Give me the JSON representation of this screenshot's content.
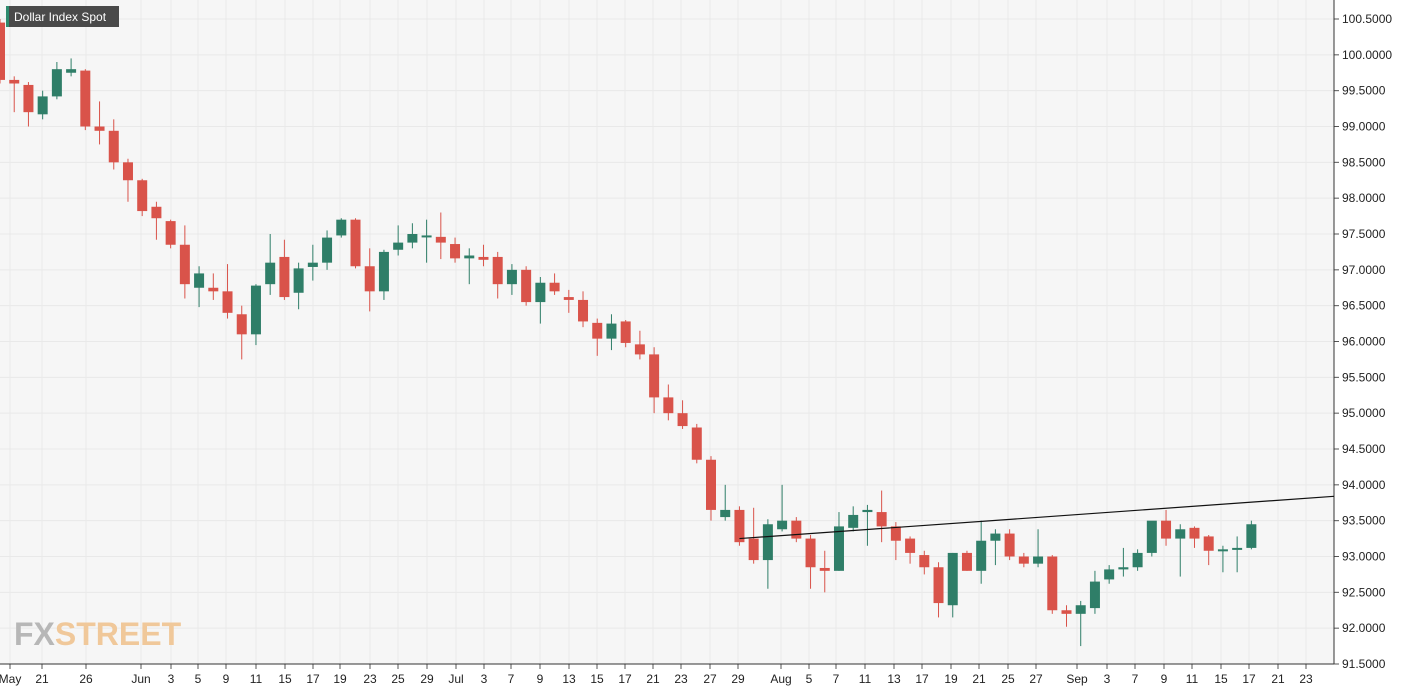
{
  "title": "Dollar Index Spot",
  "logo": {
    "part1": "FX",
    "part2": "STREET"
  },
  "colors": {
    "up": "#2f7e68",
    "down": "#d9534a",
    "grid": "#e9e9e9",
    "background": "#f6f6f6",
    "trendline": "#111111"
  },
  "chart_data": {
    "type": "candlestick",
    "title": "Dollar Index Spot",
    "ylim": [
      91.5,
      100.6
    ],
    "grid": true,
    "y_ticks": [
      "100.5000",
      "100.0000",
      "99.5000",
      "99.0000",
      "98.5000",
      "98.0000",
      "97.5000",
      "97.0000",
      "96.5000",
      "96.0000",
      "95.5000",
      "95.0000",
      "94.5000",
      "94.0000",
      "93.5000",
      "93.0000",
      "92.5000",
      "92.0000",
      "91.5000"
    ],
    "x_ticks": [
      "May",
      "21",
      "26",
      "Jun",
      "3",
      "5",
      "9",
      "11",
      "15",
      "17",
      "19",
      "23",
      "25",
      "29",
      "Jul",
      "3",
      "7",
      "9",
      "13",
      "15",
      "17",
      "21",
      "23",
      "27",
      "29",
      "Aug",
      "5",
      "7",
      "11",
      "13",
      "17",
      "19",
      "21",
      "25",
      "27",
      "Sep",
      "3",
      "7",
      "9",
      "11",
      "15",
      "17",
      "21",
      "23"
    ],
    "candles": [
      {
        "o": 100.45,
        "h": 100.5,
        "l": 99.6,
        "c": 99.65
      },
      {
        "o": 99.65,
        "h": 99.7,
        "l": 99.2,
        "c": 99.6
      },
      {
        "o": 99.58,
        "h": 99.62,
        "l": 99.0,
        "c": 99.2
      },
      {
        "o": 99.17,
        "h": 99.5,
        "l": 99.1,
        "c": 99.42
      },
      {
        "o": 99.42,
        "h": 99.9,
        "l": 99.38,
        "c": 99.8
      },
      {
        "o": 99.75,
        "h": 99.95,
        "l": 99.7,
        "c": 99.8
      },
      {
        "o": 99.78,
        "h": 99.8,
        "l": 98.95,
        "c": 99.0
      },
      {
        "o": 99.0,
        "h": 99.35,
        "l": 98.75,
        "c": 98.94
      },
      {
        "o": 98.94,
        "h": 99.1,
        "l": 98.4,
        "c": 98.5
      },
      {
        "o": 98.5,
        "h": 98.55,
        "l": 97.95,
        "c": 98.25
      },
      {
        "o": 98.25,
        "h": 98.27,
        "l": 97.75,
        "c": 97.82
      },
      {
        "o": 97.88,
        "h": 97.95,
        "l": 97.42,
        "c": 97.72
      },
      {
        "o": 97.68,
        "h": 97.7,
        "l": 97.3,
        "c": 97.35
      },
      {
        "o": 97.35,
        "h": 97.62,
        "l": 96.6,
        "c": 96.8
      },
      {
        "o": 96.75,
        "h": 97.05,
        "l": 96.48,
        "c": 96.95
      },
      {
        "o": 96.75,
        "h": 96.95,
        "l": 96.58,
        "c": 96.7
      },
      {
        "o": 96.7,
        "h": 97.08,
        "l": 96.32,
        "c": 96.4
      },
      {
        "o": 96.38,
        "h": 96.5,
        "l": 95.75,
        "c": 96.1
      },
      {
        "o": 96.1,
        "h": 96.8,
        "l": 95.95,
        "c": 96.78
      },
      {
        "o": 96.8,
        "h": 97.5,
        "l": 96.65,
        "c": 97.1
      },
      {
        "o": 97.18,
        "h": 97.42,
        "l": 96.58,
        "c": 96.62
      },
      {
        "o": 96.68,
        "h": 97.1,
        "l": 96.45,
        "c": 97.02
      },
      {
        "o": 97.04,
        "h": 97.35,
        "l": 96.85,
        "c": 97.1
      },
      {
        "o": 97.1,
        "h": 97.55,
        "l": 97.0,
        "c": 97.45
      },
      {
        "o": 97.48,
        "h": 97.72,
        "l": 97.45,
        "c": 97.7
      },
      {
        "o": 97.7,
        "h": 97.72,
        "l": 97.02,
        "c": 97.05
      },
      {
        "o": 97.05,
        "h": 97.3,
        "l": 96.42,
        "c": 96.7
      },
      {
        "o": 96.7,
        "h": 97.28,
        "l": 96.58,
        "c": 97.25
      },
      {
        "o": 97.28,
        "h": 97.62,
        "l": 97.2,
        "c": 97.38
      },
      {
        "o": 97.38,
        "h": 97.65,
        "l": 97.3,
        "c": 97.5
      },
      {
        "o": 97.48,
        "h": 97.7,
        "l": 97.1,
        "c": 97.48
      },
      {
        "o": 97.46,
        "h": 97.8,
        "l": 97.15,
        "c": 97.38
      },
      {
        "o": 97.36,
        "h": 97.45,
        "l": 97.1,
        "c": 97.16
      },
      {
        "o": 97.16,
        "h": 97.3,
        "l": 96.8,
        "c": 97.2
      },
      {
        "o": 97.18,
        "h": 97.35,
        "l": 97.05,
        "c": 97.14
      },
      {
        "o": 97.18,
        "h": 97.25,
        "l": 96.6,
        "c": 96.8
      },
      {
        "o": 96.8,
        "h": 97.08,
        "l": 96.65,
        "c": 97.0
      },
      {
        "o": 97.0,
        "h": 97.05,
        "l": 96.5,
        "c": 96.55
      },
      {
        "o": 96.55,
        "h": 96.9,
        "l": 96.25,
        "c": 96.82
      },
      {
        "o": 96.82,
        "h": 96.95,
        "l": 96.65,
        "c": 96.7
      },
      {
        "o": 96.62,
        "h": 96.72,
        "l": 96.4,
        "c": 96.58
      },
      {
        "o": 96.58,
        "h": 96.7,
        "l": 96.2,
        "c": 96.28
      },
      {
        "o": 96.26,
        "h": 96.32,
        "l": 95.8,
        "c": 96.04
      },
      {
        "o": 96.04,
        "h": 96.38,
        "l": 95.88,
        "c": 96.25
      },
      {
        "o": 96.28,
        "h": 96.3,
        "l": 95.92,
        "c": 95.98
      },
      {
        "o": 95.96,
        "h": 96.15,
        "l": 95.75,
        "c": 95.82
      },
      {
        "o": 95.82,
        "h": 95.92,
        "l": 95.0,
        "c": 95.22
      },
      {
        "o": 95.22,
        "h": 95.4,
        "l": 94.9,
        "c": 95.0
      },
      {
        "o": 95.0,
        "h": 95.18,
        "l": 94.78,
        "c": 94.82
      },
      {
        "o": 94.8,
        "h": 94.85,
        "l": 94.3,
        "c": 94.35
      },
      {
        "o": 94.35,
        "h": 94.4,
        "l": 93.5,
        "c": 93.65
      },
      {
        "o": 93.55,
        "h": 94.0,
        "l": 93.5,
        "c": 93.65
      },
      {
        "o": 93.65,
        "h": 93.7,
        "l": 93.15,
        "c": 93.2
      },
      {
        "o": 93.25,
        "h": 93.68,
        "l": 92.9,
        "c": 92.95
      },
      {
        "o": 92.95,
        "h": 93.52,
        "l": 92.55,
        "c": 93.45
      },
      {
        "o": 93.38,
        "h": 94.0,
        "l": 93.35,
        "c": 93.5
      },
      {
        "o": 93.5,
        "h": 93.55,
        "l": 93.2,
        "c": 93.25
      },
      {
        "o": 93.25,
        "h": 93.3,
        "l": 92.55,
        "c": 92.85
      },
      {
        "o": 92.84,
        "h": 93.08,
        "l": 92.5,
        "c": 92.8
      },
      {
        "o": 92.8,
        "h": 93.62,
        "l": 92.8,
        "c": 93.42
      },
      {
        "o": 93.4,
        "h": 93.7,
        "l": 93.35,
        "c": 93.58
      },
      {
        "o": 93.62,
        "h": 93.72,
        "l": 93.15,
        "c": 93.65
      },
      {
        "o": 93.62,
        "h": 93.92,
        "l": 93.2,
        "c": 93.42
      },
      {
        "o": 93.42,
        "h": 93.48,
        "l": 92.95,
        "c": 93.22
      },
      {
        "o": 93.25,
        "h": 93.28,
        "l": 92.9,
        "c": 93.05
      },
      {
        "o": 93.02,
        "h": 93.08,
        "l": 92.75,
        "c": 92.85
      },
      {
        "o": 92.85,
        "h": 92.92,
        "l": 92.15,
        "c": 92.35
      },
      {
        "o": 92.32,
        "h": 93.05,
        "l": 92.15,
        "c": 93.05
      },
      {
        "o": 93.05,
        "h": 93.08,
        "l": 92.8,
        "c": 92.8
      },
      {
        "o": 92.8,
        "h": 93.5,
        "l": 92.62,
        "c": 93.22
      },
      {
        "o": 93.22,
        "h": 93.38,
        "l": 92.88,
        "c": 93.32
      },
      {
        "o": 93.32,
        "h": 93.38,
        "l": 92.95,
        "c": 93.0
      },
      {
        "o": 93.0,
        "h": 93.05,
        "l": 92.85,
        "c": 92.9
      },
      {
        "o": 92.9,
        "h": 93.38,
        "l": 92.85,
        "c": 93.0
      },
      {
        "o": 93.0,
        "h": 93.02,
        "l": 92.2,
        "c": 92.25
      },
      {
        "o": 92.25,
        "h": 92.32,
        "l": 92.02,
        "c": 92.2
      },
      {
        "o": 92.2,
        "h": 92.38,
        "l": 91.75,
        "c": 92.32
      },
      {
        "o": 92.28,
        "h": 92.8,
        "l": 92.2,
        "c": 92.65
      },
      {
        "o": 92.68,
        "h": 92.88,
        "l": 92.62,
        "c": 92.82
      },
      {
        "o": 92.82,
        "h": 93.12,
        "l": 92.72,
        "c": 92.85
      },
      {
        "o": 92.85,
        "h": 93.1,
        "l": 92.8,
        "c": 93.05
      },
      {
        "o": 93.05,
        "h": 93.48,
        "l": 93.0,
        "c": 93.5
      },
      {
        "o": 93.5,
        "h": 93.65,
        "l": 93.15,
        "c": 93.25
      },
      {
        "o": 93.25,
        "h": 93.45,
        "l": 92.72,
        "c": 93.38
      },
      {
        "o": 93.4,
        "h": 93.42,
        "l": 93.12,
        "c": 93.25
      },
      {
        "o": 93.28,
        "h": 93.3,
        "l": 92.88,
        "c": 93.08
      },
      {
        "o": 93.08,
        "h": 93.15,
        "l": 92.78,
        "c": 93.1
      },
      {
        "o": 93.1,
        "h": 93.28,
        "l": 92.78,
        "c": 93.12
      },
      {
        "o": 93.12,
        "h": 93.5,
        "l": 93.1,
        "c": 93.45
      }
    ],
    "trendline": {
      "start": {
        "candle": 52,
        "value": 93.25
      },
      "end": {
        "candle": "right-edge",
        "value": 93.84
      }
    }
  }
}
